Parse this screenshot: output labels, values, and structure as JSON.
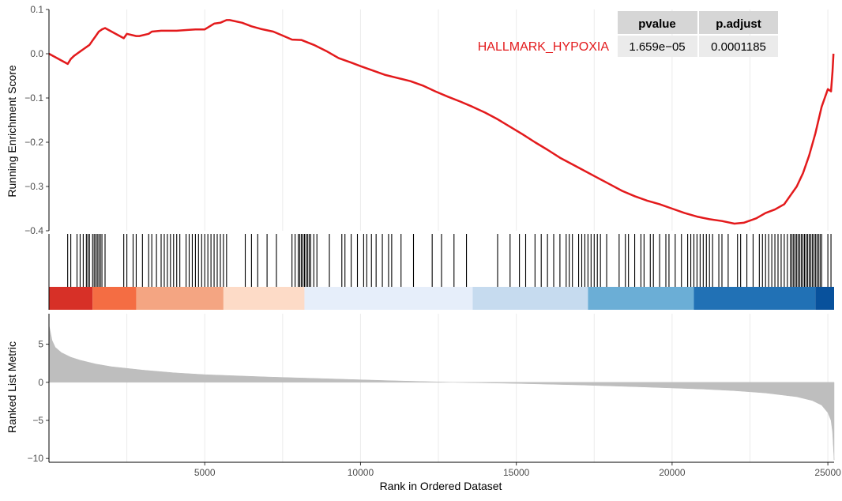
{
  "chart_data": {
    "type": "line",
    "title": "",
    "gene_set": "HALLMARK_HYPOXIA",
    "colors": {
      "curve": "#e31a1c",
      "metric_fill": "#bebebe",
      "grid": "#ebebeb",
      "hits": "#000000"
    },
    "stats_table": {
      "headers": [
        "pvalue",
        "p.adjust"
      ],
      "row": [
        "1.659e−05",
        "0.0001185"
      ]
    },
    "x_axis": {
      "label": "Rank in Ordered Dataset",
      "lim": [
        0,
        25200
      ],
      "ticks": [
        5000,
        10000,
        15000,
        20000,
        25000
      ],
      "tick_labels": [
        "5000",
        "10000",
        "15000",
        "20000",
        "25000"
      ]
    },
    "enrichment_panel": {
      "ylabel": "Running Enrichment Score",
      "ylim": [
        -0.4,
        0.1
      ],
      "yticks": [
        0.1,
        0.0,
        -0.1,
        -0.2,
        -0.3,
        -0.4
      ],
      "ytick_labels": [
        "0.1",
        "0.0",
        "−0.1",
        "−0.2",
        "−0.3",
        "−0.4"
      ],
      "running_score": {
        "x": [
          0,
          600,
          700,
          800,
          900,
          1000,
          1100,
          1300,
          1400,
          1500,
          1600,
          1700,
          1800,
          2400,
          2500,
          2800,
          2900,
          3200,
          3300,
          3600,
          4100,
          4500,
          4700,
          5000,
          5300,
          5500,
          5700,
          5800,
          6200,
          6500,
          6800,
          7200,
          7500,
          7800,
          8100,
          8500,
          8900,
          9300,
          9700,
          10000,
          10400,
          10800,
          11200,
          11600,
          12000,
          12400,
          12800,
          13200,
          13600,
          14000,
          14400,
          14800,
          15200,
          15600,
          16000,
          16400,
          16800,
          17200,
          17600,
          18000,
          18400,
          18800,
          19200,
          19600,
          20000,
          20400,
          20800,
          21200,
          21600,
          22000,
          22300,
          22700,
          23000,
          23300,
          23600,
          23800,
          24000,
          24200,
          24400,
          24600,
          24800,
          25000,
          25100,
          25150,
          25180
        ],
        "y": [
          0.0,
          -0.023,
          -0.012,
          -0.005,
          0.0,
          0.005,
          0.01,
          0.02,
          0.03,
          0.04,
          0.05,
          0.055,
          0.058,
          0.035,
          0.045,
          0.04,
          0.04,
          0.045,
          0.05,
          0.052,
          0.052,
          0.054,
          0.055,
          0.055,
          0.068,
          0.07,
          0.076,
          0.076,
          0.07,
          0.062,
          0.056,
          0.05,
          0.041,
          0.032,
          0.031,
          0.02,
          0.006,
          -0.01,
          -0.02,
          -0.028,
          -0.038,
          -0.048,
          -0.055,
          -0.062,
          -0.072,
          -0.085,
          -0.097,
          -0.108,
          -0.12,
          -0.133,
          -0.148,
          -0.165,
          -0.182,
          -0.2,
          -0.217,
          -0.235,
          -0.25,
          -0.265,
          -0.28,
          -0.295,
          -0.31,
          -0.322,
          -0.332,
          -0.34,
          -0.35,
          -0.36,
          -0.368,
          -0.374,
          -0.378,
          -0.384,
          -0.382,
          -0.372,
          -0.36,
          -0.352,
          -0.34,
          -0.32,
          -0.3,
          -0.27,
          -0.23,
          -0.18,
          -0.12,
          -0.08,
          -0.085,
          -0.04,
          0.0
        ]
      }
    },
    "hits_panel": {
      "positions": [
        600,
        700,
        900,
        1000,
        1100,
        1200,
        1250,
        1300,
        1400,
        1450,
        1500,
        1550,
        1600,
        1650,
        1700,
        1800,
        2400,
        2500,
        2700,
        2800,
        3000,
        3200,
        3300,
        3450,
        3600,
        3700,
        3800,
        3900,
        4000,
        4100,
        4200,
        4400,
        4500,
        4600,
        4700,
        4800,
        4900,
        5000,
        5100,
        5200,
        5300,
        5400,
        5500,
        5600,
        5700,
        6300,
        6500,
        6700,
        7000,
        7300,
        7800,
        7900,
        8000,
        8050,
        8100,
        8150,
        8200,
        8250,
        8300,
        8350,
        8400,
        8500,
        8600,
        9000,
        9400,
        9500,
        9700,
        9900,
        10100,
        10200,
        10350,
        10500,
        10700,
        10900,
        11000,
        11300,
        11700,
        12300,
        12600,
        13000,
        13400,
        14400,
        14800,
        15100,
        15300,
        15600,
        15800,
        16000,
        16200,
        16400,
        16600,
        16700,
        16800,
        17000,
        17100,
        17200,
        17300,
        17400,
        17500,
        17600,
        17700,
        17900,
        18300,
        18500,
        18600,
        18800,
        19000,
        19100,
        19300,
        19400,
        19600,
        19800,
        19900,
        20100,
        20300,
        20500,
        20600,
        20700,
        20800,
        20900,
        21000,
        21100,
        21200,
        21300,
        21500,
        21600,
        21800,
        22100,
        22200,
        22400,
        22600,
        22800,
        22900,
        23000,
        23100,
        23200,
        23300,
        23400,
        23500,
        23600,
        23700,
        23800,
        23850,
        23900,
        23950,
        24000,
        24050,
        24100,
        24150,
        24200,
        24250,
        24300,
        24350,
        24400,
        24450,
        24500,
        24550,
        24600,
        24650,
        24700,
        24750,
        24800,
        25000,
        25100
      ],
      "heat_segments": [
        {
          "from": 0,
          "to": 1400,
          "color": "#d73027"
        },
        {
          "from": 1400,
          "to": 2800,
          "color": "#f46d43"
        },
        {
          "from": 2800,
          "to": 5600,
          "color": "#f4a582"
        },
        {
          "from": 5600,
          "to": 8200,
          "color": "#fddbc7"
        },
        {
          "from": 8200,
          "to": 13600,
          "color": "#e6eefa"
        },
        {
          "from": 13600,
          "to": 17300,
          "color": "#c6dbef"
        },
        {
          "from": 17300,
          "to": 20700,
          "color": "#6baed6"
        },
        {
          "from": 20700,
          "to": 24600,
          "color": "#2171b5"
        },
        {
          "from": 24600,
          "to": 25200,
          "color": "#08519c"
        }
      ]
    },
    "metric_panel": {
      "ylabel": "Ranked List Metric",
      "ylim": [
        -10.5,
        9
      ],
      "yticks": [
        5,
        0,
        -5,
        -10
      ],
      "ytick_labels": [
        "5",
        "0",
        "−5",
        "−10"
      ],
      "ranked_metric": {
        "x": [
          0,
          50,
          100,
          200,
          400,
          700,
          1000,
          1500,
          2000,
          3000,
          4000,
          5000,
          7000,
          9000,
          11000,
          13000,
          15000,
          17000,
          19000,
          21000,
          22000,
          23000,
          24000,
          24500,
          24800,
          25000,
          25100,
          25150,
          25200
        ],
        "y": [
          7.5,
          6.5,
          5.5,
          4.6,
          3.9,
          3.3,
          2.9,
          2.4,
          2.05,
          1.6,
          1.25,
          1.0,
          0.7,
          0.45,
          0.2,
          0.0,
          -0.15,
          -0.35,
          -0.6,
          -0.9,
          -1.1,
          -1.4,
          -1.9,
          -2.4,
          -3.0,
          -4.0,
          -5.0,
          -6.5,
          -10.2
        ]
      }
    }
  }
}
